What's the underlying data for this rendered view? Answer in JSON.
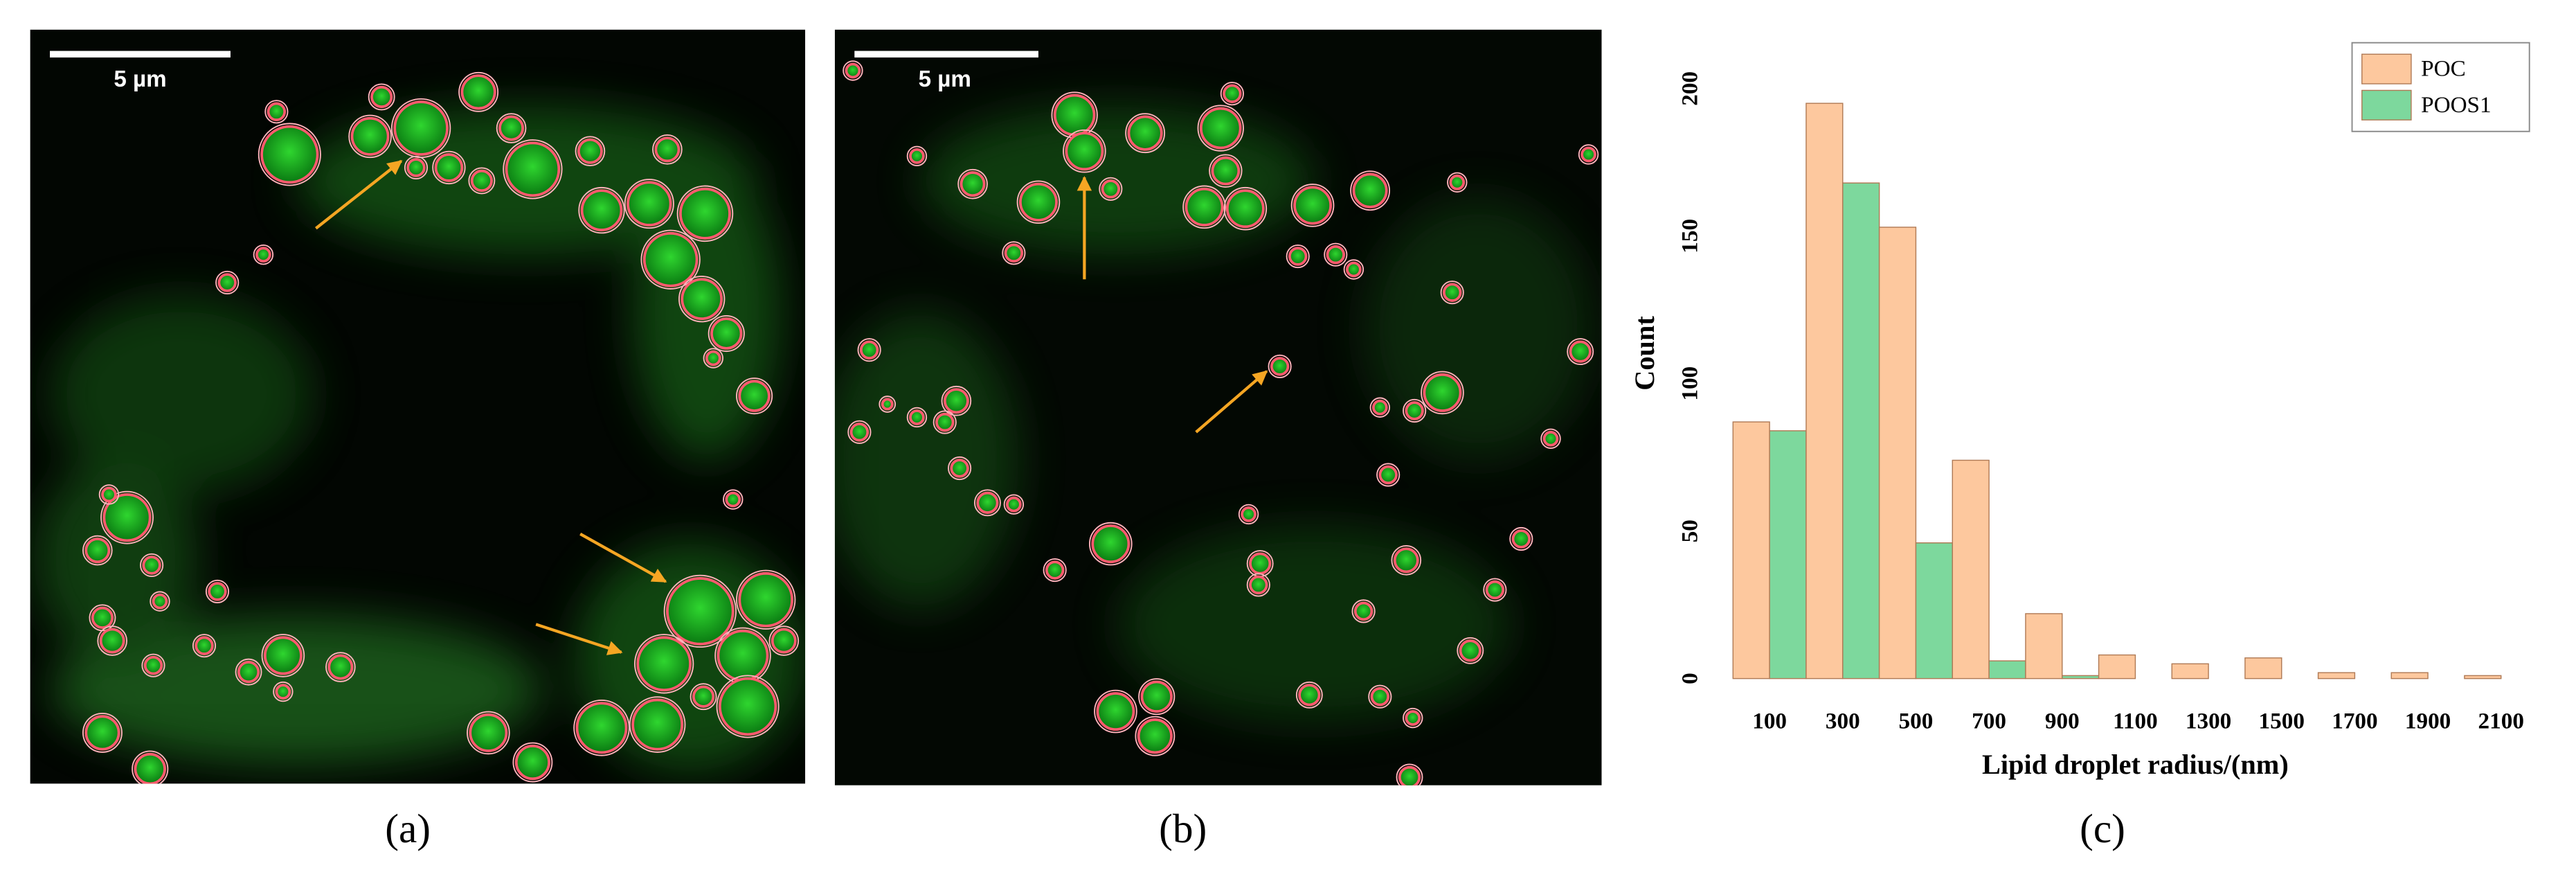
{
  "panels": [
    {
      "label": "(a)",
      "scale_bar": "5 µm"
    },
    {
      "label": "(b)",
      "scale_bar": "5 µm"
    }
  ],
  "chart_data": {
    "type": "bar",
    "label": "(c)",
    "xlabel": "Lipid droplet radius/(nm)",
    "ylabel": "Count",
    "categories": [
      "100",
      "300",
      "500",
      "700",
      "900",
      "1100",
      "1300",
      "1500",
      "1700",
      "1900",
      "2100"
    ],
    "series": [
      {
        "name": "POC",
        "color": "#fdc89e",
        "values": [
          87,
          195,
          153,
          74,
          22,
          8,
          5,
          7,
          2,
          2,
          1
        ]
      },
      {
        "name": "POOS1",
        "color": "#7dd89d",
        "values": [
          84,
          168,
          46,
          6,
          1,
          0,
          0,
          0,
          0,
          0,
          0
        ]
      }
    ],
    "ylim": [
      0,
      220
    ],
    "yticks": [
      0,
      50,
      100,
      150,
      200
    ],
    "legend": "upper right"
  }
}
